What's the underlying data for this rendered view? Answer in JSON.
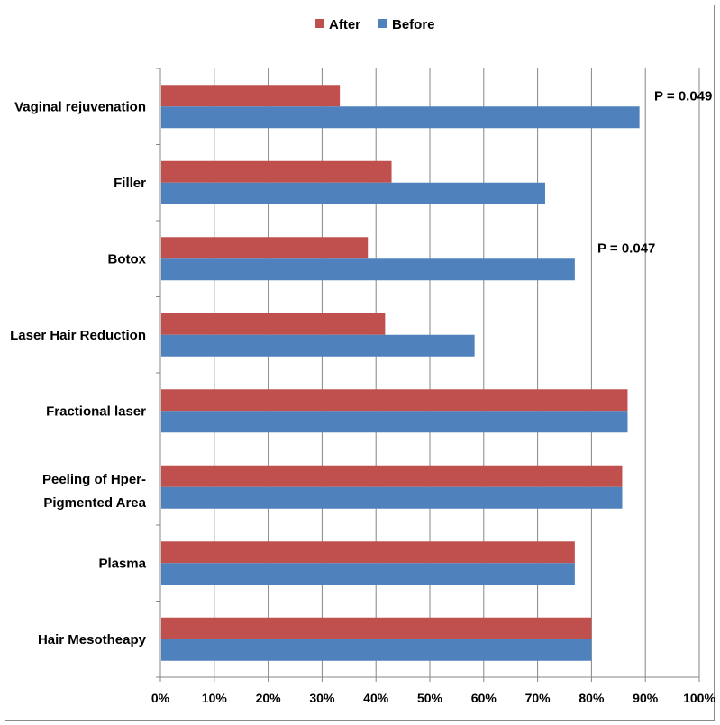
{
  "chart_data": {
    "type": "bar",
    "orientation": "horizontal",
    "categories": [
      "Vaginal rejuvenation",
      "Filler",
      "Botox",
      "Laser Hair Reduction",
      "Fractional laser",
      "Peeling of  Hper-Pigmented Area",
      "Plasma",
      "Hair Mesotheapy"
    ],
    "series": [
      {
        "name": "After",
        "color": "#c0504d",
        "values": [
          33.3,
          42.9,
          38.5,
          41.7,
          86.7,
          85.7,
          76.9,
          80.0
        ]
      },
      {
        "name": "Before",
        "color": "#4f81bd",
        "values": [
          88.9,
          71.4,
          76.9,
          58.3,
          86.7,
          85.7,
          76.9,
          80.0
        ]
      }
    ],
    "xlim": [
      0,
      100
    ],
    "x_ticks": [
      "0%",
      "10%",
      "20%",
      "30%",
      "40%",
      "50%",
      "60%",
      "70%",
      "80%",
      "90%",
      "100%"
    ],
    "grid": "vertical",
    "legend": {
      "placement": "top",
      "entries": [
        "After",
        "Before"
      ]
    },
    "annotations": [
      {
        "text": "P = 0.049",
        "category": "Vaginal rejuvenation"
      },
      {
        "text": "P = 0.047",
        "category": "Botox"
      }
    ],
    "xlabel": "",
    "ylabel": ""
  }
}
